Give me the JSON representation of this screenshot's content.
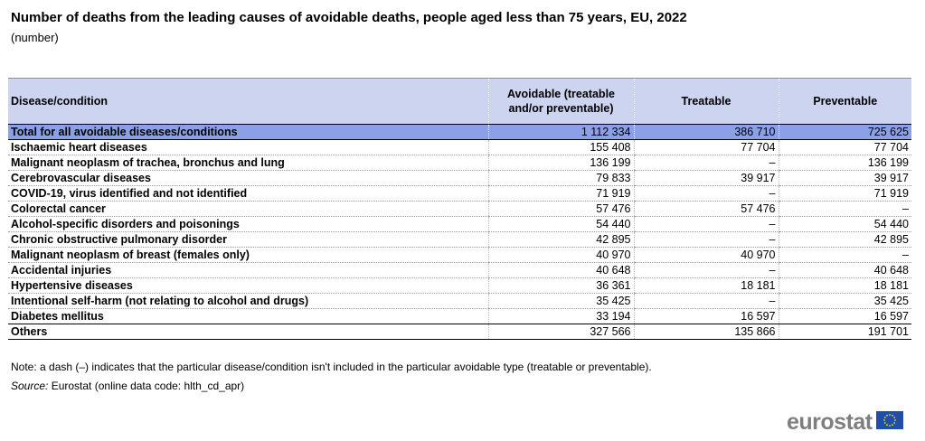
{
  "title": "Number of deaths from the leading causes of avoidable deaths, people aged less than 75 years, EU, 2022",
  "subtitle": "(number)",
  "table": {
    "headers": [
      "Disease/condition",
      "Avoidable (treatable and/or preventable)",
      "Treatable",
      "Preventable"
    ],
    "rows": [
      [
        "Total for all avoidable diseases/conditions",
        "1 112 334",
        "386 710",
        "725 625"
      ],
      [
        "Ischaemic heart diseases",
        "155 408",
        "77 704",
        "77 704"
      ],
      [
        "Malignant neoplasm of trachea, bronchus and lung",
        "136 199",
        "–",
        "136 199"
      ],
      [
        "Cerebrovascular diseases",
        "79 833",
        "39 917",
        "39 917"
      ],
      [
        "COVID-19, virus identified and not identified",
        "71 919",
        "–",
        "71 919"
      ],
      [
        "Colorectal cancer",
        "57 476",
        "57 476",
        "–"
      ],
      [
        "Alcohol-specific disorders and poisonings",
        "54 440",
        "–",
        "54 440"
      ],
      [
        "Chronic obstructive pulmonary disorder",
        "42 895",
        "–",
        "42 895"
      ],
      [
        "Malignant neoplasm of breast (females only)",
        "40 970",
        "40 970",
        "–"
      ],
      [
        "Accidental injuries",
        "40 648",
        "–",
        "40 648"
      ],
      [
        "Hypertensive diseases",
        "36 361",
        "18 181",
        "18 181"
      ],
      [
        "Intentional self-harm (not relating to alcohol and drugs)",
        "35 425",
        "–",
        "35 425"
      ],
      [
        "Diabetes mellitus",
        "33 194",
        "16 597",
        "16 597"
      ],
      [
        "Others",
        "327 566",
        "135 866",
        "191 701"
      ]
    ]
  },
  "note": "Note: a dash (–) indicates that the particular disease/condition isn't included in the particular avoidable type (treatable or preventable).",
  "source": {
    "label": "Source:",
    "text": "Eurostat (online data code: hlth_cd_apr)"
  },
  "logo": {
    "text": "eurostat",
    "icon": "eu-flag-icon"
  },
  "colors": {
    "header_bg": "#ccd4f0",
    "total_bg": "#8ca0e6",
    "logo_text": "#7f7f7f",
    "flag_blue": "#1f4fa8",
    "flag_stars": "#ffd617"
  }
}
